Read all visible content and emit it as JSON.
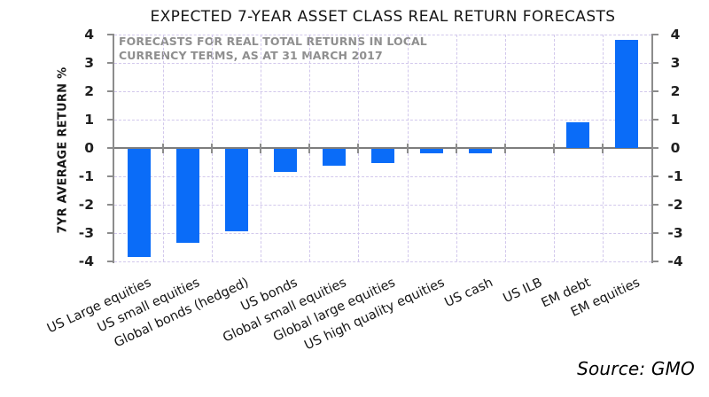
{
  "chart_data": {
    "type": "bar",
    "title": "EXPECTED 7-YEAR ASSET CLASS REAL RETURN FORECASTS",
    "subtitle_lines": [
      "FORECASTS FOR REAL TOTAL RETURNS IN LOCAL",
      "CURRENCY TERMS, AS AT 31 MARCH 2017"
    ],
    "ylabel": "7YR AVERAGE RETURN %",
    "ylim": [
      -4,
      4
    ],
    "yticks": [
      4,
      3,
      2,
      1,
      0,
      -1,
      -2,
      -3,
      -4
    ],
    "categories": [
      "US Large equities",
      "US small equities",
      "Global bonds (hedged)",
      "US bonds",
      "Global small equities",
      "Global large equities",
      "US high quality equities",
      "US cash",
      "US ILB",
      "EM debt",
      "EM equities"
    ],
    "values": [
      -3.8,
      -3.3,
      -2.9,
      -0.8,
      -0.6,
      -0.5,
      -0.15,
      -0.15,
      0,
      0.9,
      3.8
    ],
    "grid": "dashed-both-axes",
    "legend": "none",
    "bar_color": "#0a6cf8",
    "grid_color": "#d2c8ec",
    "axis_color": "#8c8c8c",
    "subtitle_color": "#8f8f8f",
    "source": "Source: GMO"
  }
}
